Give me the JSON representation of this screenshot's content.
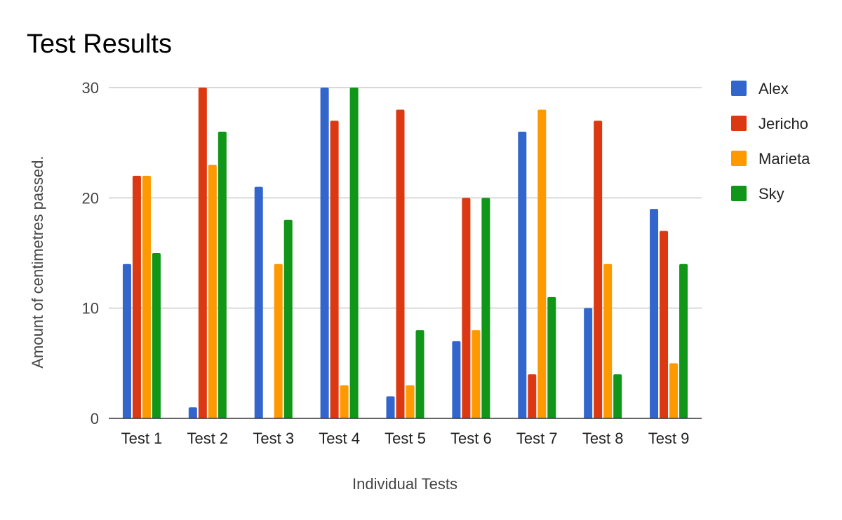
{
  "chart_data": {
    "type": "bar",
    "title": "Test Results",
    "xlabel": "Individual Tests",
    "ylabel": "Amount of centimetres passed.",
    "categories": [
      "Test 1",
      "Test 2",
      "Test 3",
      "Test 4",
      "Test 5",
      "Test 6",
      "Test 7",
      "Test 8",
      "Test 9"
    ],
    "series": [
      {
        "name": " Alex",
        "color": "#3366cc",
        "values": [
          14,
          1,
          21,
          30,
          2,
          7,
          26,
          10,
          19
        ]
      },
      {
        "name": "Jericho",
        "color": "#dc3912",
        "values": [
          22,
          30,
          0,
          27,
          28,
          20,
          4,
          27,
          17
        ]
      },
      {
        "name": "Marieta",
        "color": "#ff9900",
        "values": [
          22,
          23,
          14,
          3,
          3,
          8,
          28,
          14,
          5
        ]
      },
      {
        "name": "Sky",
        "color": "#109618",
        "values": [
          15,
          26,
          18,
          30,
          8,
          20,
          11,
          4,
          14
        ]
      }
    ],
    "ylim": [
      0,
      30
    ],
    "yticks": [
      0,
      10,
      20,
      30
    ],
    "grid": true,
    "legend_position": "right"
  }
}
